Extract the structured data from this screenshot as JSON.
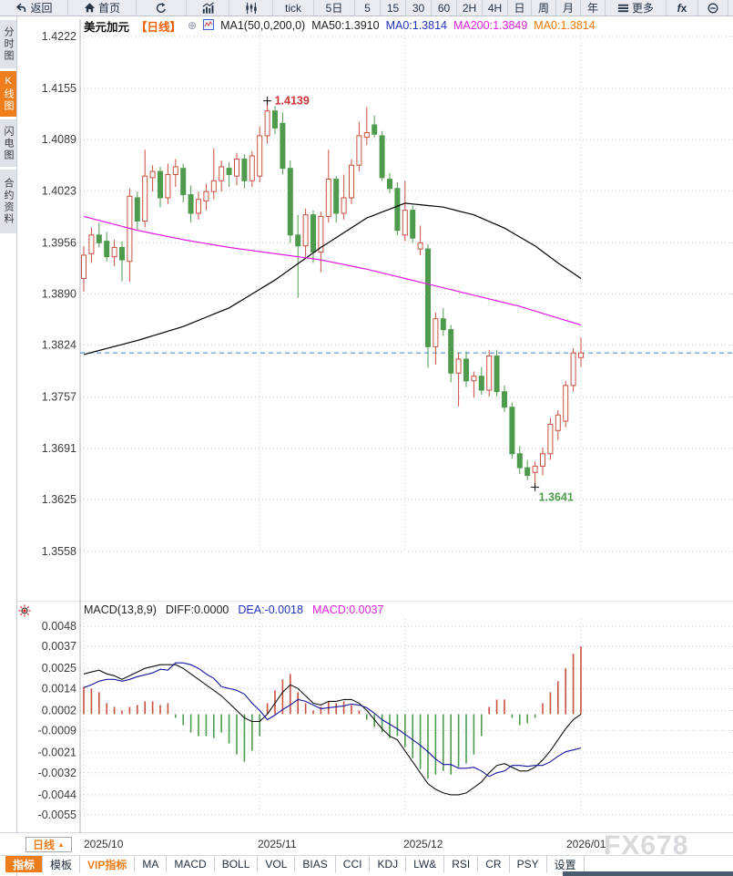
{
  "toolbar": {
    "items": [
      {
        "name": "back",
        "icon": "back",
        "label": "返回"
      },
      {
        "name": "home",
        "icon": "home",
        "label": "首页"
      },
      {
        "name": "refresh",
        "icon": "refresh"
      },
      {
        "name": "bar-chart",
        "icon": "bar-chart"
      },
      {
        "name": "candle-chart",
        "icon": "candles"
      },
      {
        "name": "tick",
        "label": "tick"
      },
      {
        "name": "period-5d",
        "label": "5日"
      },
      {
        "name": "period-5",
        "label": "5"
      },
      {
        "name": "period-15",
        "label": "15"
      },
      {
        "name": "period-30",
        "label": "30"
      },
      {
        "name": "period-60",
        "label": "60"
      },
      {
        "name": "period-2h",
        "label": "2H"
      },
      {
        "name": "period-4h",
        "label": "4H"
      },
      {
        "name": "period-day",
        "label": "日"
      },
      {
        "name": "period-week",
        "label": "周"
      },
      {
        "name": "period-month",
        "label": "月"
      },
      {
        "name": "period-year",
        "label": "年"
      },
      {
        "name": "more",
        "icon": "menu",
        "label": "更多"
      },
      {
        "name": "fx-functions",
        "icon": "fx"
      },
      {
        "name": "zoom-out",
        "icon": "zoom-out"
      }
    ]
  },
  "sidebar": {
    "tabs": [
      {
        "name": "time-chart",
        "label": "分时图",
        "active": false
      },
      {
        "name": "kline-chart",
        "label": "K线图",
        "active": true
      },
      {
        "name": "flash-chart",
        "label": "闪电图",
        "active": false
      },
      {
        "name": "contract-info",
        "label": "合约资料",
        "active": false
      }
    ]
  },
  "chart_header": {
    "symbol": "美元加元",
    "period": "【日线】",
    "plus": "⊕",
    "ma_settings": "MA1(50,0,200,0)",
    "ma50": "MA50:1.3910",
    "ma0_blue": "MA0:1.3814",
    "ma200": "MA200:1.3849",
    "ma0_orange": "MA0:1.3814"
  },
  "macd_header": {
    "title": "MACD(13,8,9)",
    "diff": "DIFF:0.0000",
    "dea": "DEA:-0.0018",
    "macd": "MACD:0.0037"
  },
  "bottom": {
    "period_button": "日线",
    "period_button_arrow": "▲",
    "xlabels": [
      "2025/10",
      "2025/11",
      "2025/12",
      "2026/01"
    ],
    "watermark": "FX678",
    "tabs": [
      {
        "name": "indicator",
        "label": "指标",
        "style": "active"
      },
      {
        "name": "template",
        "label": "模板",
        "style": ""
      },
      {
        "name": "vip-indicator",
        "label": "VIP指标",
        "style": "vip"
      },
      {
        "name": "ma",
        "label": "MA",
        "style": ""
      },
      {
        "name": "macd",
        "label": "MACD",
        "style": ""
      },
      {
        "name": "boll",
        "label": "BOLL",
        "style": ""
      },
      {
        "name": "vol",
        "label": "VOL",
        "style": ""
      },
      {
        "name": "bias",
        "label": "BIAS",
        "style": ""
      },
      {
        "name": "cci",
        "label": "CCI",
        "style": ""
      },
      {
        "name": "kdj",
        "label": "KDJ",
        "style": ""
      },
      {
        "name": "lw",
        "label": "LW&",
        "style": ""
      },
      {
        "name": "rsi",
        "label": "RSI",
        "style": ""
      },
      {
        "name": "cr",
        "label": "CR",
        "style": ""
      },
      {
        "name": "psy",
        "label": "PSY",
        "style": ""
      },
      {
        "name": "settings",
        "label": "设置",
        "style": ""
      }
    ]
  },
  "chart_data": {
    "type": "candlestick+macd",
    "symbol": "USD/CAD 美元加元",
    "timeframe": "daily",
    "price_axis_ticks": [
      1.4222,
      1.4155,
      1.4089,
      1.4023,
      1.3956,
      1.389,
      1.3824,
      1.3757,
      1.3691,
      1.3625,
      1.3558
    ],
    "macd_axis_ticks": [
      0.0048,
      0.0037,
      0.0025,
      0.0014,
      0.0002,
      -0.0009,
      -0.0021,
      -0.0032,
      -0.0044,
      -0.0055
    ],
    "x_tick_labels": [
      "2025/10",
      "2025/11",
      "2025/12",
      "2026/01"
    ],
    "x_gridline_indices": [
      0,
      23,
      42,
      65
    ],
    "current_price": 1.3814,
    "high_annotation": {
      "index": 24,
      "price": 1.4139,
      "label": "1.4139"
    },
    "low_annotation": {
      "index": 59,
      "price": 1.3641,
      "label": "1.3641"
    },
    "candles_ohlc": [
      [
        1.391,
        1.3952,
        1.3893,
        1.394
      ],
      [
        1.3942,
        1.3976,
        1.393,
        1.3966
      ],
      [
        1.3966,
        1.3982,
        1.395,
        1.3956
      ],
      [
        1.3958,
        1.397,
        1.3932,
        1.3938
      ],
      [
        1.3938,
        1.396,
        1.3926,
        1.395
      ],
      [
        1.395,
        1.3958,
        1.3906,
        1.3934
      ],
      [
        1.3932,
        1.4026,
        1.3906,
        1.4016
      ],
      [
        1.4014,
        1.4022,
        1.3972,
        1.3984
      ],
      [
        1.3984,
        1.4076,
        1.3976,
        1.4042
      ],
      [
        1.404,
        1.4056,
        1.4022,
        1.4048
      ],
      [
        1.4048,
        1.4054,
        1.4002,
        1.4014
      ],
      [
        1.4014,
        1.4058,
        1.4006,
        1.4044
      ],
      [
        1.4044,
        1.4064,
        1.4028,
        1.4054
      ],
      [
        1.4052,
        1.4058,
        1.4008,
        1.4018
      ],
      [
        1.4018,
        1.403,
        1.3982,
        1.3994
      ],
      [
        1.3994,
        1.4022,
        1.3986,
        1.4012
      ],
      [
        1.401,
        1.4032,
        1.3998,
        1.4022
      ],
      [
        1.4022,
        1.4078,
        1.4012,
        1.4036
      ],
      [
        1.4036,
        1.4062,
        1.4022,
        1.4054
      ],
      [
        1.4052,
        1.406,
        1.4028,
        1.4044
      ],
      [
        1.4042,
        1.4072,
        1.403,
        1.4064
      ],
      [
        1.4064,
        1.407,
        1.4026,
        1.4036
      ],
      [
        1.4036,
        1.4074,
        1.4028,
        1.4068
      ],
      [
        1.4042,
        1.4106,
        1.4034,
        1.4094
      ],
      [
        1.4094,
        1.4139,
        1.4084,
        1.4126
      ],
      [
        1.4126,
        1.4132,
        1.4096,
        1.4104
      ],
      [
        1.411,
        1.4124,
        1.4044,
        1.4052
      ],
      [
        1.4052,
        1.4062,
        1.3956,
        1.3966
      ],
      [
        1.3966,
        1.3992,
        1.3885,
        1.3952
      ],
      [
        1.3952,
        1.4,
        1.3938,
        1.3992
      ],
      [
        1.3992,
        1.3998,
        1.393,
        1.3944
      ],
      [
        1.3944,
        1.3996,
        1.3918,
        1.399
      ],
      [
        1.399,
        1.4076,
        1.3982,
        1.4038
      ],
      [
        1.4038,
        1.4042,
        1.3982,
        1.3994
      ],
      [
        1.3994,
        1.4044,
        1.3986,
        1.4014
      ],
      [
        1.4014,
        1.4064,
        1.4006,
        1.4056
      ],
      [
        1.4056,
        1.4112,
        1.4048,
        1.4094
      ],
      [
        1.4092,
        1.4131,
        1.4082,
        1.4098
      ],
      [
        1.4108,
        1.412,
        1.4092,
        1.4096
      ],
      [
        1.4094,
        1.41,
        1.4036,
        1.404
      ],
      [
        1.4038,
        1.4046,
        1.402,
        1.4026
      ],
      [
        1.4026,
        1.4034,
        1.3966,
        1.3972
      ],
      [
        1.3966,
        1.4036,
        1.3958,
        1.3998
      ],
      [
        1.3998,
        1.4004,
        1.3956,
        1.3962
      ],
      [
        1.3948,
        1.3978,
        1.394,
        1.3956
      ],
      [
        1.3948,
        1.3954,
        1.3795,
        1.3822
      ],
      [
        1.3822,
        1.3866,
        1.3799,
        1.3858
      ],
      [
        1.3858,
        1.3872,
        1.3836,
        1.3844
      ],
      [
        1.3844,
        1.385,
        1.3776,
        1.3788
      ],
      [
        1.3788,
        1.3814,
        1.3745,
        1.3806
      ],
      [
        1.3806,
        1.3816,
        1.377,
        1.3778
      ],
      [
        1.3778,
        1.379,
        1.3756,
        1.3784
      ],
      [
        1.3784,
        1.3796,
        1.376,
        1.3766
      ],
      [
        1.3766,
        1.3818,
        1.3758,
        1.381
      ],
      [
        1.381,
        1.3818,
        1.3758,
        1.3764
      ],
      [
        1.3764,
        1.3772,
        1.3738,
        1.3744
      ],
      [
        1.3744,
        1.375,
        1.3678,
        1.3684
      ],
      [
        1.3684,
        1.3694,
        1.3658,
        1.3666
      ],
      [
        1.3666,
        1.3676,
        1.365,
        1.3656
      ],
      [
        1.366,
        1.3674,
        1.3641,
        1.3668
      ],
      [
        1.3668,
        1.3692,
        1.3656,
        1.3684
      ],
      [
        1.3684,
        1.373,
        1.3676,
        1.3722
      ],
      [
        1.3714,
        1.374,
        1.3702,
        1.3734
      ],
      [
        1.3726,
        1.3778,
        1.3718,
        1.3772
      ],
      [
        1.3772,
        1.382,
        1.3764,
        1.3814
      ],
      [
        1.3808,
        1.3834,
        1.3796,
        1.3814
      ]
    ],
    "ma50_anchors": [
      [
        0,
        1.3812
      ],
      [
        7,
        1.383
      ],
      [
        13,
        1.3848
      ],
      [
        19,
        1.3872
      ],
      [
        25,
        1.3908
      ],
      [
        31,
        1.395
      ],
      [
        37,
        1.3988
      ],
      [
        42,
        1.4007
      ],
      [
        47,
        1.4002
      ],
      [
        51,
        1.3992
      ],
      [
        55,
        1.3975
      ],
      [
        59,
        1.3952
      ],
      [
        62,
        1.393
      ],
      [
        65,
        1.391
      ]
    ],
    "ma200_anchors": [
      [
        0,
        1.399
      ],
      [
        7,
        1.3972
      ],
      [
        13,
        1.396
      ],
      [
        19,
        1.395
      ],
      [
        25,
        1.3942
      ],
      [
        31,
        1.3934
      ],
      [
        37,
        1.3922
      ],
      [
        42,
        1.391
      ],
      [
        47,
        1.3898
      ],
      [
        52,
        1.3886
      ],
      [
        57,
        1.3874
      ],
      [
        61,
        1.3862
      ],
      [
        65,
        1.385
      ]
    ],
    "macd_diff": [
      0.0022,
      0.0023,
      0.0024,
      0.0022,
      0.0021,
      0.0019,
      0.0021,
      0.0023,
      0.0025,
      0.0026,
      0.0027,
      0.0027,
      0.0027,
      0.0025,
      0.0022,
      0.0019,
      0.0016,
      0.0013,
      0.001,
      0.0006,
      0.0002,
      -0.0002,
      -0.0004,
      -0.0004,
      0.0,
      0.0006,
      0.0012,
      0.0016,
      0.0014,
      0.001,
      0.0006,
      0.0005,
      0.0007,
      0.0007,
      0.0008,
      0.0008,
      0.0006,
      0.0002,
      -0.0003,
      -0.0008,
      -0.0012,
      -0.0014,
      -0.002,
      -0.0026,
      -0.0032,
      -0.0038,
      -0.0041,
      -0.0043,
      -0.0044,
      -0.0044,
      -0.0043,
      -0.004,
      -0.0037,
      -0.0032,
      -0.0028,
      -0.0027,
      -0.0029,
      -0.0031,
      -0.0031,
      -0.0029,
      -0.0025,
      -0.002,
      -0.0014,
      -0.0008,
      -0.0003,
      0.0
    ],
    "macd_dea": [
      0.00145,
      0.0016,
      0.0018,
      0.0019,
      0.0019,
      0.0018,
      0.0019,
      0.00205,
      0.00215,
      0.00225,
      0.00245,
      0.0024,
      0.0028,
      0.0028,
      0.0027,
      0.0025,
      0.0022,
      0.00195,
      0.0015,
      0.0014,
      0.0013,
      0.0011,
      0.0006,
      0.0002,
      -0.0003,
      -5e-05,
      0.00025,
      0.0005,
      0.0008,
      0.0007,
      0.0005,
      0.0003,
      0.00035,
      0.0004,
      0.00045,
      0.00055,
      0.0005,
      0.00035,
      5e-05,
      -0.0003,
      -0.00055,
      -0.0008,
      -0.0011,
      -0.0014,
      -0.0017,
      -0.00205,
      -0.00245,
      -0.00275,
      -0.00275,
      -0.00295,
      -0.00295,
      -0.0029,
      -0.0031,
      -0.0034,
      -0.0032,
      -0.0031,
      -0.0028,
      -0.0028,
      -0.00285,
      -0.0028,
      -0.0028,
      -0.0026,
      -0.0023,
      -0.00205,
      -0.00195,
      -0.00185
    ],
    "macd_hist": [
      0.0015,
      0.0014,
      0.0012,
      0.0006,
      0.0004,
      0.0002,
      0.0004,
      0.0005,
      0.0007,
      0.0007,
      0.0005,
      0.0006,
      -0.0002,
      -0.0006,
      -0.001,
      -0.0012,
      -0.0012,
      -0.0013,
      -0.001,
      -0.0016,
      -0.0022,
      -0.0026,
      -0.002,
      -0.0012,
      0.0006,
      0.0013,
      0.0019,
      0.0022,
      0.0012,
      0.0006,
      0.0002,
      0.0004,
      0.0007,
      0.0006,
      0.0007,
      0.0005,
      0.0002,
      -0.0003,
      -0.0007,
      -0.001,
      -0.0013,
      -0.0012,
      -0.0018,
      -0.0024,
      -0.003,
      -0.0035,
      -0.0033,
      -0.0031,
      -0.0033,
      -0.0029,
      -0.0027,
      -0.0022,
      -0.0012,
      0.0004,
      0.0008,
      0.0008,
      -0.0002,
      -0.0006,
      -0.0005,
      -0.0002,
      0.0006,
      0.0012,
      0.0018,
      0.0025,
      0.0033,
      0.0037
    ],
    "colors": {
      "up": "#c94f3f",
      "down": "#4e9b4e",
      "ma50": "#000000",
      "ma200": "#e319e3",
      "diff_line": "#111111",
      "dea_line": "#15159e",
      "current_price_line": "#3c83c8",
      "high_label": "#cc3333",
      "low_label": "#4e9b4e",
      "active_tab": "#ef7d1a"
    },
    "legend": [
      "MA50 (black)",
      "MA200 (magenta)",
      "DIFF (black)",
      "DEA (navy)",
      "MACD histogram (red/green)"
    ]
  }
}
